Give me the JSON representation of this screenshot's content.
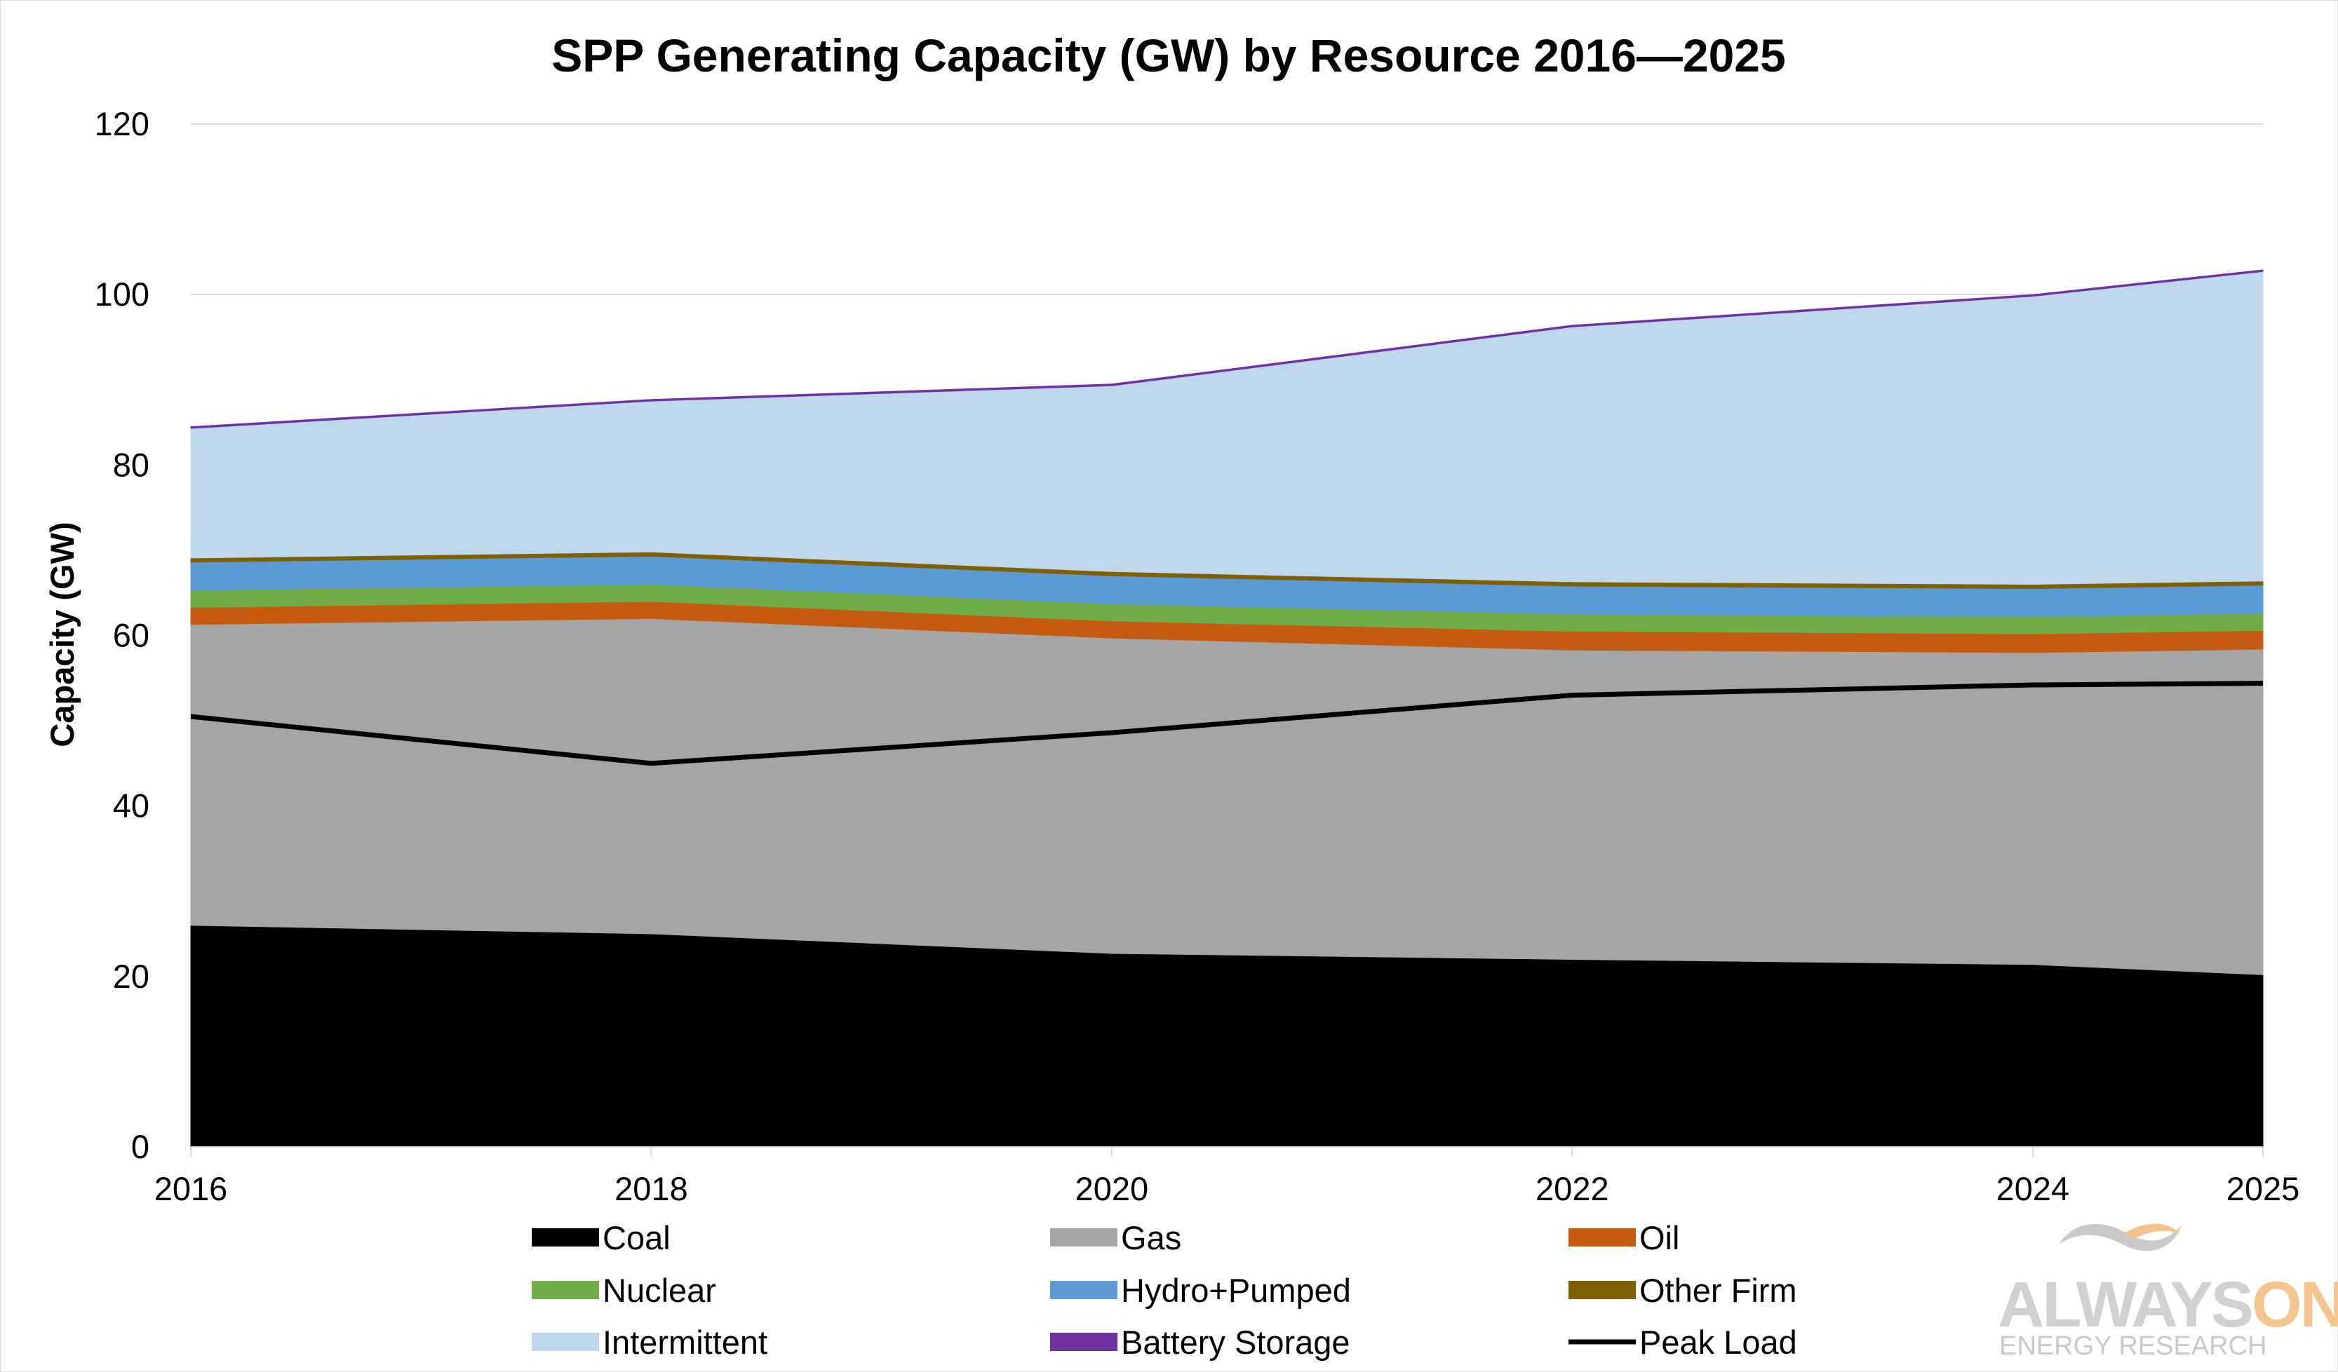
{
  "chart_data": {
    "type": "area",
    "stacked": true,
    "title": "SPP Generating Capacity (GW) by Resource 2016—2025",
    "xlabel": "",
    "ylabel": "Capacity (GW)",
    "x": [
      2016,
      2018,
      2020,
      2022,
      2024,
      2025
    ],
    "xlim": [
      2016,
      2025
    ],
    "ylim": [
      0,
      120
    ],
    "yticks": [
      0,
      20,
      40,
      60,
      80,
      100,
      120
    ],
    "grid": true,
    "legend_position": "bottom",
    "series": [
      {
        "name": "Coal",
        "color": "#000000",
        "values": [
          26.0,
          25.0,
          22.7,
          22.0,
          21.4,
          20.2
        ]
      },
      {
        "name": "Gas",
        "color": "#a5a5a5",
        "values": [
          35.3,
          37.0,
          37.0,
          36.3,
          36.6,
          38.2
        ]
      },
      {
        "name": "Oil",
        "color": "#c55a11",
        "values": [
          2.0,
          2.0,
          2.0,
          2.2,
          2.2,
          2.2
        ]
      },
      {
        "name": "Nuclear",
        "color": "#70ad47",
        "values": [
          2.0,
          2.0,
          2.0,
          2.0,
          2.0,
          2.0
        ]
      },
      {
        "name": "Hydro+Pumped",
        "color": "#5b9bd5",
        "values": [
          3.3,
          3.3,
          3.3,
          3.3,
          3.3,
          3.3
        ]
      },
      {
        "name": "Other Firm",
        "color": "#7f6000",
        "values": [
          0.5,
          0.5,
          0.5,
          0.5,
          0.5,
          0.5
        ]
      },
      {
        "name": "Intermittent",
        "color": "#bdd7ee",
        "values": [
          15.2,
          17.7,
          21.8,
          29.9,
          33.8,
          36.3
        ]
      },
      {
        "name": "Battery Storage",
        "color": "#7030a0",
        "values": [
          0.2,
          0.2,
          0.2,
          0.2,
          0.2,
          0.2
        ]
      }
    ],
    "lines": [
      {
        "name": "Peak Load",
        "color": "#000000",
        "values": [
          50.5,
          45.0,
          48.6,
          53.0,
          54.2,
          54.4
        ]
      }
    ]
  },
  "logo": {
    "main_left": "ALWAYS",
    "main_right": "ON",
    "sub": "ENERGY RESEARCH"
  }
}
